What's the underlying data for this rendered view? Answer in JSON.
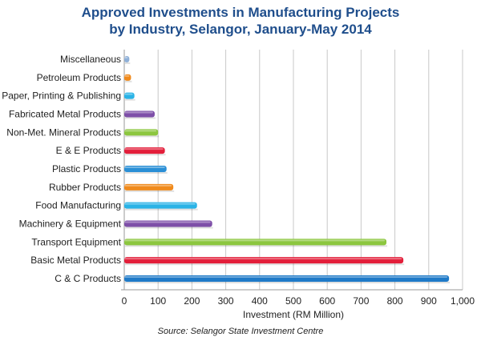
{
  "title_line1": "Approved Investments in Manufacturing Projects",
  "title_line2": "by Industry, Selangor, January-May 2014",
  "source": "Source: Selangor State Investment Centre",
  "chart_data": {
    "type": "bar",
    "orientation": "horizontal",
    "xlabel": "Investment (RM Million)",
    "ylabel": "",
    "xlim": [
      0,
      1000
    ],
    "xticks": [
      "0",
      "100",
      "200",
      "300",
      "400",
      "500",
      "600",
      "700",
      "800",
      "900",
      "1,000"
    ],
    "grid": true,
    "categories": [
      "Miscellaneous",
      "Petroleum Products",
      "Paper, Printing & Publishing",
      "Fabricated Metal Products",
      "Non-Met. Mineral Products",
      "E & E Products",
      "Plastic Products",
      "Rubber Products",
      "Food Manufacturing",
      "Machinery & Equipment",
      "Transport Equipment",
      "Basic Metal Products",
      "C & C Products"
    ],
    "values": [
      15,
      20,
      30,
      90,
      100,
      120,
      125,
      145,
      215,
      260,
      775,
      825,
      960
    ],
    "colors": [
      "#8fb0d8",
      "#f08a1c",
      "#2ab3e6",
      "#7e4fa8",
      "#8cc63f",
      "#e31e3a",
      "#2a8fd6",
      "#f08a1c",
      "#2ab3e6",
      "#7e4fa8",
      "#8cc63f",
      "#e31e3a",
      "#1f7ac8"
    ]
  }
}
